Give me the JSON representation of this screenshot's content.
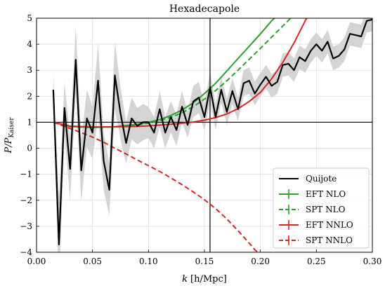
{
  "chart_data": {
    "type": "line",
    "title": "Hexadecapole",
    "xlabel_main": "k",
    "xlabel_units": "[h/Mpc]",
    "ylabel_main": "P/P",
    "ylabel_sub": "Kaiser",
    "xlim": [
      0.0,
      0.3
    ],
    "ylim": [
      -4,
      5
    ],
    "x_ticks": [
      0.0,
      0.05,
      0.1,
      0.15,
      0.2,
      0.25,
      0.3
    ],
    "x_tick_labels": [
      "0.00",
      "0.05",
      "0.10",
      "0.15",
      "0.20",
      "0.25",
      "0.30"
    ],
    "y_ticks": [
      -4,
      -3,
      -2,
      -1,
      0,
      1,
      2,
      3,
      4,
      5
    ],
    "y_tick_labels": [
      "−4",
      "−3",
      "−2",
      "−1",
      "0",
      "1",
      "2",
      "3",
      "4",
      "5"
    ],
    "grid": true,
    "legend_position": "bottom-right",
    "reference_lines": {
      "vertical_x": 0.155,
      "horizontal_y": 1.0
    },
    "series": [
      {
        "name": "Quijote",
        "color": "#000000",
        "style": "solid",
        "x": [
          0.015,
          0.02,
          0.025,
          0.03,
          0.035,
          0.04,
          0.045,
          0.05,
          0.055,
          0.06,
          0.065,
          0.07,
          0.075,
          0.08,
          0.085,
          0.09,
          0.095,
          0.1,
          0.105,
          0.11,
          0.115,
          0.12,
          0.125,
          0.13,
          0.135,
          0.14,
          0.145,
          0.15,
          0.155,
          0.16,
          0.165,
          0.17,
          0.175,
          0.18,
          0.185,
          0.19,
          0.195,
          0.2,
          0.205,
          0.21,
          0.215,
          0.22,
          0.225,
          0.23,
          0.235,
          0.24,
          0.245,
          0.25,
          0.255,
          0.26,
          0.265,
          0.27,
          0.275,
          0.28,
          0.285,
          0.29,
          0.295,
          0.3
        ],
        "y": [
          2.25,
          -3.7,
          1.55,
          -0.8,
          3.4,
          -0.85,
          1.15,
          0.6,
          2.6,
          -0.5,
          -1.6,
          2.8,
          1.35,
          0.2,
          1.15,
          0.85,
          1.0,
          1.0,
          0.6,
          1.5,
          0.6,
          1.2,
          0.7,
          1.6,
          0.9,
          1.8,
          1.95,
          1.2,
          2.35,
          1.2,
          2.25,
          1.4,
          2.2,
          1.5,
          2.5,
          2.6,
          2.1,
          2.45,
          2.75,
          2.4,
          2.55,
          3.2,
          3.25,
          3.0,
          3.5,
          3.35,
          3.75,
          4.0,
          3.75,
          4.1,
          3.45,
          3.55,
          3.8,
          4.4,
          4.35,
          4.3,
          4.9,
          4.95
        ],
        "band_half_width": [
          0.6,
          1.8,
          1.0,
          1.2,
          1.3,
          1.2,
          1.1,
          1.0,
          1.4,
          1.1,
          1.0,
          1.3,
          1.0,
          0.8,
          0.8,
          0.7,
          0.7,
          0.6,
          0.6,
          0.7,
          0.6,
          0.6,
          0.6,
          0.6,
          0.5,
          0.6,
          0.6,
          0.5,
          0.6,
          0.5,
          0.5,
          0.5,
          0.5,
          0.45,
          0.5,
          0.5,
          0.45,
          0.45,
          0.45,
          0.45,
          0.45,
          0.45,
          0.45,
          0.45,
          0.45,
          0.45,
          0.45,
          0.45,
          0.45,
          0.45,
          0.45,
          0.45,
          0.45,
          0.45,
          0.45,
          0.45,
          0.45,
          0.45
        ]
      },
      {
        "name": "EFT NLO",
        "color": "#2ca02c",
        "style": "solid",
        "x": [
          0.015,
          0.03,
          0.05,
          0.07,
          0.09,
          0.1,
          0.11,
          0.12,
          0.13,
          0.14,
          0.15,
          0.16,
          0.17,
          0.18,
          0.19,
          0.2,
          0.21,
          0.215,
          0.22,
          0.227
        ],
        "y": [
          1.0,
          0.83,
          0.8,
          0.83,
          0.92,
          1.0,
          1.1,
          1.26,
          1.47,
          1.75,
          2.1,
          2.5,
          2.97,
          3.45,
          3.92,
          4.4,
          4.9,
          5.1,
          5.3,
          5.5
        ]
      },
      {
        "name": "SPT NLO",
        "color": "#2ca02c",
        "style": "dashed",
        "x": [
          0.015,
          0.03,
          0.05,
          0.07,
          0.09,
          0.1,
          0.11,
          0.12,
          0.13,
          0.14,
          0.15,
          0.16,
          0.17,
          0.18,
          0.19,
          0.2,
          0.21,
          0.22,
          0.23,
          0.235
        ],
        "y": [
          1.0,
          0.83,
          0.8,
          0.82,
          0.9,
          0.97,
          1.06,
          1.19,
          1.36,
          1.6,
          1.89,
          2.22,
          2.59,
          3.0,
          3.42,
          3.84,
          4.27,
          4.7,
          5.13,
          5.35
        ]
      },
      {
        "name": "EFT NNLO",
        "color": "#d62728",
        "style": "solid",
        "x": [
          0.015,
          0.03,
          0.05,
          0.07,
          0.09,
          0.1,
          0.11,
          0.12,
          0.13,
          0.14,
          0.15,
          0.16,
          0.17,
          0.18,
          0.19,
          0.2,
          0.21,
          0.22,
          0.23,
          0.235,
          0.24,
          0.244
        ],
        "y": [
          1.0,
          0.85,
          0.82,
          0.82,
          0.84,
          0.86,
          0.89,
          0.92,
          0.96,
          1.01,
          1.08,
          1.18,
          1.32,
          1.52,
          1.8,
          2.15,
          2.67,
          3.3,
          4.05,
          4.47,
          4.9,
          5.2
        ]
      },
      {
        "name": "SPT NNLO",
        "color": "#d62728",
        "style": "dashed",
        "x": [
          0.015,
          0.03,
          0.04,
          0.05,
          0.06,
          0.07,
          0.08,
          0.09,
          0.1,
          0.11,
          0.12,
          0.13,
          0.14,
          0.15,
          0.16,
          0.17,
          0.18,
          0.19,
          0.195,
          0.2
        ],
        "y": [
          1.0,
          0.76,
          0.6,
          0.43,
          0.23,
          0.0,
          -0.22,
          -0.45,
          -0.67,
          -0.89,
          -1.14,
          -1.4,
          -1.68,
          -1.98,
          -2.32,
          -2.72,
          -3.17,
          -3.65,
          -3.9,
          -4.1
        ]
      }
    ]
  }
}
